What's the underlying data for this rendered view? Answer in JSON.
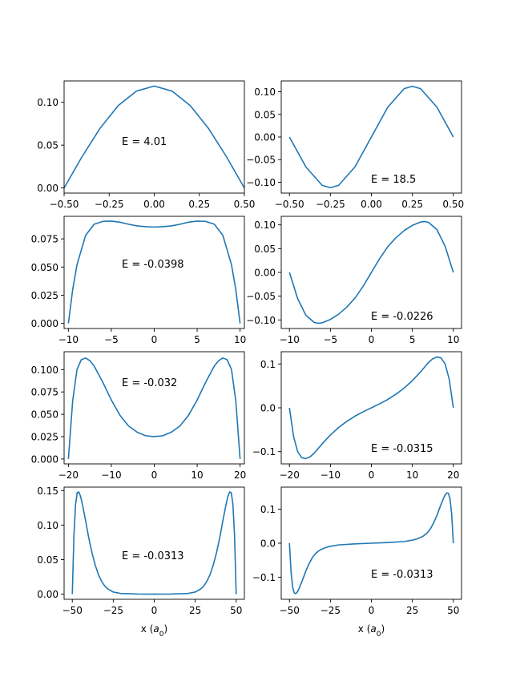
{
  "chart_data": [
    {
      "type": "line",
      "annotation": "E = 4.01",
      "xlabel": "",
      "xlim": [
        -0.5,
        0.5
      ],
      "ylim": [
        -0.006,
        0.125
      ],
      "xticks": [
        -0.5,
        -0.25,
        0.0,
        0.25,
        0.5
      ],
      "xtick_labels": [
        "−0.50",
        "−0.25",
        "0.00",
        "0.25",
        "0.50"
      ],
      "yticks": [
        0.0,
        0.05,
        0.1
      ],
      "ytick_labels": [
        "0.00",
        "0.05",
        "0.10"
      ],
      "series": [
        {
          "x": [
            -0.5,
            -0.4,
            -0.3,
            -0.2,
            -0.1,
            0.0,
            0.1,
            0.2,
            0.3,
            0.4,
            0.5
          ],
          "y": [
            0.0,
            0.0367,
            0.0698,
            0.0961,
            0.113,
            0.119,
            0.113,
            0.0961,
            0.0698,
            0.0367,
            0.0
          ]
        }
      ]
    },
    {
      "type": "line",
      "annotation": "E = 18.5",
      "xlabel": "",
      "xlim": [
        -0.55,
        0.55
      ],
      "ylim": [
        -0.124,
        0.124
      ],
      "xticks": [
        -0.5,
        -0.25,
        0.0,
        0.25,
        0.5
      ],
      "xtick_labels": [
        "−0.50",
        "−0.25",
        "0.00",
        "0.25",
        "0.50"
      ],
      "yticks": [
        -0.1,
        -0.05,
        0.0,
        0.05,
        0.1
      ],
      "ytick_labels": [
        "−0.10",
        "−0.05",
        "0.00",
        "0.05",
        "0.10"
      ],
      "series": [
        {
          "x": [
            -0.5,
            -0.4,
            -0.3,
            -0.25,
            -0.2,
            -0.1,
            0.0,
            0.1,
            0.2,
            0.25,
            0.3,
            0.4,
            0.5
          ],
          "y": [
            0.0,
            -0.066,
            -0.107,
            -0.112,
            -0.107,
            -0.066,
            0.0,
            0.066,
            0.107,
            0.112,
            0.107,
            0.066,
            0.0
          ]
        }
      ]
    },
    {
      "type": "line",
      "annotation": "E = -0.0398",
      "xlabel": "",
      "xlim": [
        -10.5,
        10.5
      ],
      "ylim": [
        -0.0045,
        0.095
      ],
      "xticks": [
        -10,
        -5,
        0,
        5,
        10
      ],
      "xtick_labels": [
        "−10",
        "−5",
        "0",
        "5",
        "10"
      ],
      "yticks": [
        0.0,
        0.025,
        0.05,
        0.075
      ],
      "ytick_labels": [
        "0.000",
        "0.025",
        "0.050",
        "0.075"
      ],
      "series": [
        {
          "x": [
            -10,
            -9.5,
            -9,
            -8,
            -7,
            -6,
            -5,
            -4,
            -3,
            -2,
            -1,
            0,
            1,
            2,
            3,
            4,
            5,
            6,
            7,
            8,
            9,
            9.5,
            10
          ],
          "y": [
            0.0,
            0.03,
            0.052,
            0.078,
            0.088,
            0.0905,
            0.0908,
            0.0898,
            0.088,
            0.0865,
            0.0858,
            0.0855,
            0.0858,
            0.0865,
            0.088,
            0.0898,
            0.0908,
            0.0905,
            0.088,
            0.078,
            0.052,
            0.03,
            0.0
          ]
        }
      ]
    },
    {
      "type": "line",
      "annotation": "E = -0.0226",
      "xlabel": "",
      "xlim": [
        -11,
        11
      ],
      "ylim": [
        -0.118,
        0.118
      ],
      "xticks": [
        -10,
        -5,
        0,
        5,
        10
      ],
      "xtick_labels": [
        "−10",
        "−5",
        "0",
        "5",
        "10"
      ],
      "yticks": [
        -0.1,
        -0.05,
        0.0,
        0.05,
        0.1
      ],
      "ytick_labels": [
        "−0.10",
        "−0.05",
        "0.00",
        "0.05",
        "0.10"
      ],
      "series": [
        {
          "x": [
            -10,
            -9,
            -8,
            -7,
            -6.5,
            -6,
            -5,
            -4,
            -3,
            -2,
            -1,
            0,
            1,
            2,
            3,
            4,
            5,
            6,
            6.5,
            7,
            8,
            9,
            10
          ],
          "y": [
            0.0,
            -0.055,
            -0.09,
            -0.105,
            -0.107,
            -0.106,
            -0.099,
            -0.088,
            -0.073,
            -0.054,
            -0.029,
            0.0,
            0.029,
            0.054,
            0.073,
            0.088,
            0.099,
            0.106,
            0.107,
            0.105,
            0.09,
            0.055,
            0.0
          ]
        }
      ]
    },
    {
      "type": "line",
      "annotation": "E = -0.032",
      "xlabel": "",
      "xlim": [
        -21,
        21
      ],
      "ylim": [
        -0.0055,
        0.12
      ],
      "xticks": [
        -20,
        -10,
        0,
        10,
        20
      ],
      "xtick_labels": [
        "−20",
        "−10",
        "0",
        "10",
        "20"
      ],
      "yticks": [
        0.0,
        0.025,
        0.05,
        0.075,
        0.1
      ],
      "ytick_labels": [
        "0.000",
        "0.025",
        "0.050",
        "0.075",
        "0.100"
      ],
      "series": [
        {
          "x": [
            -20,
            -19,
            -18,
            -17,
            -16,
            -15,
            -14,
            -12,
            -10,
            -8,
            -6,
            -4,
            -2,
            0,
            2,
            4,
            6,
            8,
            10,
            12,
            14,
            15,
            16,
            17,
            18,
            19,
            20
          ],
          "y": [
            0.0,
            0.065,
            0.1,
            0.111,
            0.113,
            0.11,
            0.104,
            0.086,
            0.066,
            0.049,
            0.037,
            0.03,
            0.026,
            0.025,
            0.026,
            0.03,
            0.037,
            0.049,
            0.066,
            0.086,
            0.104,
            0.11,
            0.113,
            0.111,
            0.1,
            0.065,
            0.0
          ]
        }
      ]
    },
    {
      "type": "line",
      "annotation": "E = -0.0315",
      "xlabel": "",
      "xlim": [
        -22,
        22
      ],
      "ylim": [
        -0.128,
        0.128
      ],
      "xticks": [
        -20,
        -10,
        0,
        10,
        20
      ],
      "xtick_labels": [
        "−20",
        "−10",
        "0",
        "10",
        "20"
      ],
      "yticks": [
        -0.1,
        0.0,
        0.1
      ],
      "ytick_labels": [
        "−0.1",
        "0.0",
        "0.1"
      ],
      "series": [
        {
          "x": [
            -20,
            -19,
            -18,
            -17,
            -16,
            -15,
            -14,
            -12,
            -10,
            -8,
            -6,
            -4,
            -2,
            0,
            2,
            4,
            6,
            8,
            10,
            12,
            14,
            15,
            16,
            17,
            18,
            19,
            20
          ],
          "y": [
            0.0,
            -0.065,
            -0.1,
            -0.114,
            -0.116,
            -0.112,
            -0.104,
            -0.082,
            -0.062,
            -0.045,
            -0.031,
            -0.019,
            -0.009,
            0.0,
            0.009,
            0.019,
            0.031,
            0.045,
            0.062,
            0.082,
            0.104,
            0.112,
            0.116,
            0.114,
            0.1,
            0.065,
            0.0
          ]
        }
      ]
    },
    {
      "type": "line",
      "annotation": "E = -0.0313",
      "xlabel": "x (a0)",
      "xlim": [
        -55,
        55
      ],
      "ylim": [
        -0.0075,
        0.155
      ],
      "xticks": [
        -50,
        -25,
        0,
        25,
        50
      ],
      "xtick_labels": [
        "−50",
        "−25",
        "0",
        "25",
        "50"
      ],
      "yticks": [
        0.0,
        0.05,
        0.1,
        0.15
      ],
      "ytick_labels": [
        "0.00",
        "0.05",
        "0.10",
        "0.15"
      ],
      "series": [
        {
          "x": [
            -50,
            -49,
            -48,
            -47,
            -46,
            -45,
            -44,
            -42,
            -40,
            -38,
            -36,
            -34,
            -32,
            -30,
            -28,
            -25,
            -20,
            -10,
            0,
            10,
            20,
            25,
            28,
            30,
            32,
            34,
            36,
            38,
            40,
            42,
            44,
            45,
            46,
            47,
            48,
            49,
            50
          ],
          "y": [
            0.0,
            0.085,
            0.13,
            0.147,
            0.148,
            0.142,
            0.132,
            0.108,
            0.082,
            0.06,
            0.042,
            0.028,
            0.018,
            0.011,
            0.007,
            0.003,
            0.0008,
            0.0001,
            0.0,
            0.0001,
            0.0008,
            0.003,
            0.007,
            0.011,
            0.018,
            0.028,
            0.042,
            0.06,
            0.082,
            0.108,
            0.132,
            0.142,
            0.148,
            0.147,
            0.13,
            0.085,
            0.0
          ]
        }
      ]
    },
    {
      "type": "line",
      "annotation": "E = -0.0313",
      "xlabel": "x (a0)",
      "xlim": [
        -55,
        55
      ],
      "ylim": [
        -0.165,
        0.165
      ],
      "xticks": [
        -50,
        -25,
        0,
        25,
        50
      ],
      "xtick_labels": [
        "−50",
        "−25",
        "0",
        "25",
        "50"
      ],
      "yticks": [
        -0.1,
        0.0,
        0.1
      ],
      "ytick_labels": [
        "−0.1",
        "0.0",
        "0.1"
      ],
      "series": [
        {
          "x": [
            -50,
            -49,
            -48,
            -47,
            -46,
            -45,
            -44,
            -42,
            -40,
            -38,
            -36,
            -34,
            -32,
            -30,
            -28,
            -25,
            -20,
            -10,
            0,
            10,
            20,
            25,
            28,
            30,
            32,
            34,
            36,
            38,
            40,
            42,
            44,
            45,
            46,
            47,
            48,
            49,
            50
          ],
          "y": [
            0.0,
            -0.085,
            -0.13,
            -0.147,
            -0.148,
            -0.142,
            -0.132,
            -0.108,
            -0.082,
            -0.06,
            -0.042,
            -0.03,
            -0.022,
            -0.017,
            -0.013,
            -0.009,
            -0.005,
            -0.002,
            0.0,
            0.002,
            0.005,
            0.009,
            0.013,
            0.017,
            0.022,
            0.03,
            0.042,
            0.06,
            0.082,
            0.108,
            0.132,
            0.142,
            0.148,
            0.147,
            0.13,
            0.085,
            0.0
          ]
        }
      ]
    }
  ],
  "style": {
    "line_color": "#1f77b4"
  }
}
